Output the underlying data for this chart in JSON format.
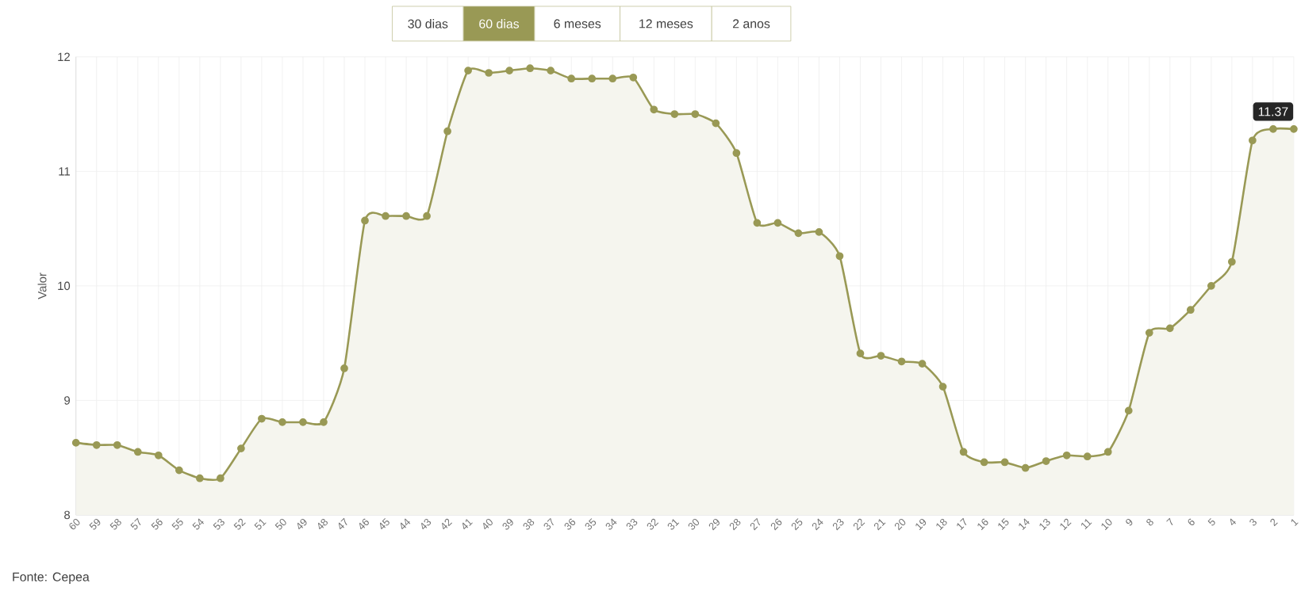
{
  "chart_data": {
    "type": "area",
    "ylabel": "Valor",
    "categories": [
      "60",
      "59",
      "58",
      "57",
      "56",
      "55",
      "54",
      "53",
      "52",
      "51",
      "50",
      "49",
      "48",
      "47",
      "46",
      "45",
      "44",
      "43",
      "42",
      "41",
      "40",
      "39",
      "38",
      "37",
      "36",
      "35",
      "34",
      "33",
      "32",
      "31",
      "30",
      "29",
      "28",
      "27",
      "26",
      "25",
      "24",
      "23",
      "22",
      "21",
      "20",
      "19",
      "18",
      "17",
      "16",
      "15",
      "14",
      "13",
      "12",
      "11",
      "10",
      "9",
      "8",
      "7",
      "6",
      "5",
      "4",
      "3",
      "2",
      "1"
    ],
    "values": [
      8.63,
      8.61,
      8.61,
      8.55,
      8.52,
      8.39,
      8.32,
      8.32,
      8.58,
      8.84,
      8.81,
      8.81,
      8.81,
      9.28,
      10.57,
      10.61,
      10.61,
      10.61,
      11.35,
      11.88,
      11.86,
      11.88,
      11.9,
      11.88,
      11.81,
      11.81,
      11.81,
      11.82,
      11.54,
      11.5,
      11.5,
      11.42,
      11.16,
      10.55,
      10.55,
      10.46,
      10.47,
      10.26,
      9.41,
      9.39,
      9.34,
      9.32,
      9.12,
      8.55,
      8.46,
      8.46,
      8.41,
      8.47,
      8.52,
      8.51,
      8.55,
      8.91,
      9.59,
      9.63,
      9.79,
      10.0,
      10.21,
      11.27,
      11.37,
      11.37
    ],
    "color": "#999955",
    "ylim": [
      8,
      12
    ],
    "yticks": [
      8,
      9,
      10,
      11,
      12
    ],
    "grid": true,
    "marker": "circle",
    "annotations": [
      "30 dias",
      "60 dias",
      "6 meses",
      "12 meses",
      "2 anos",
      "Fonte: Cepea",
      {
        "text": "11.37",
        "x": "2",
        "y": 11.37
      }
    ]
  }
}
